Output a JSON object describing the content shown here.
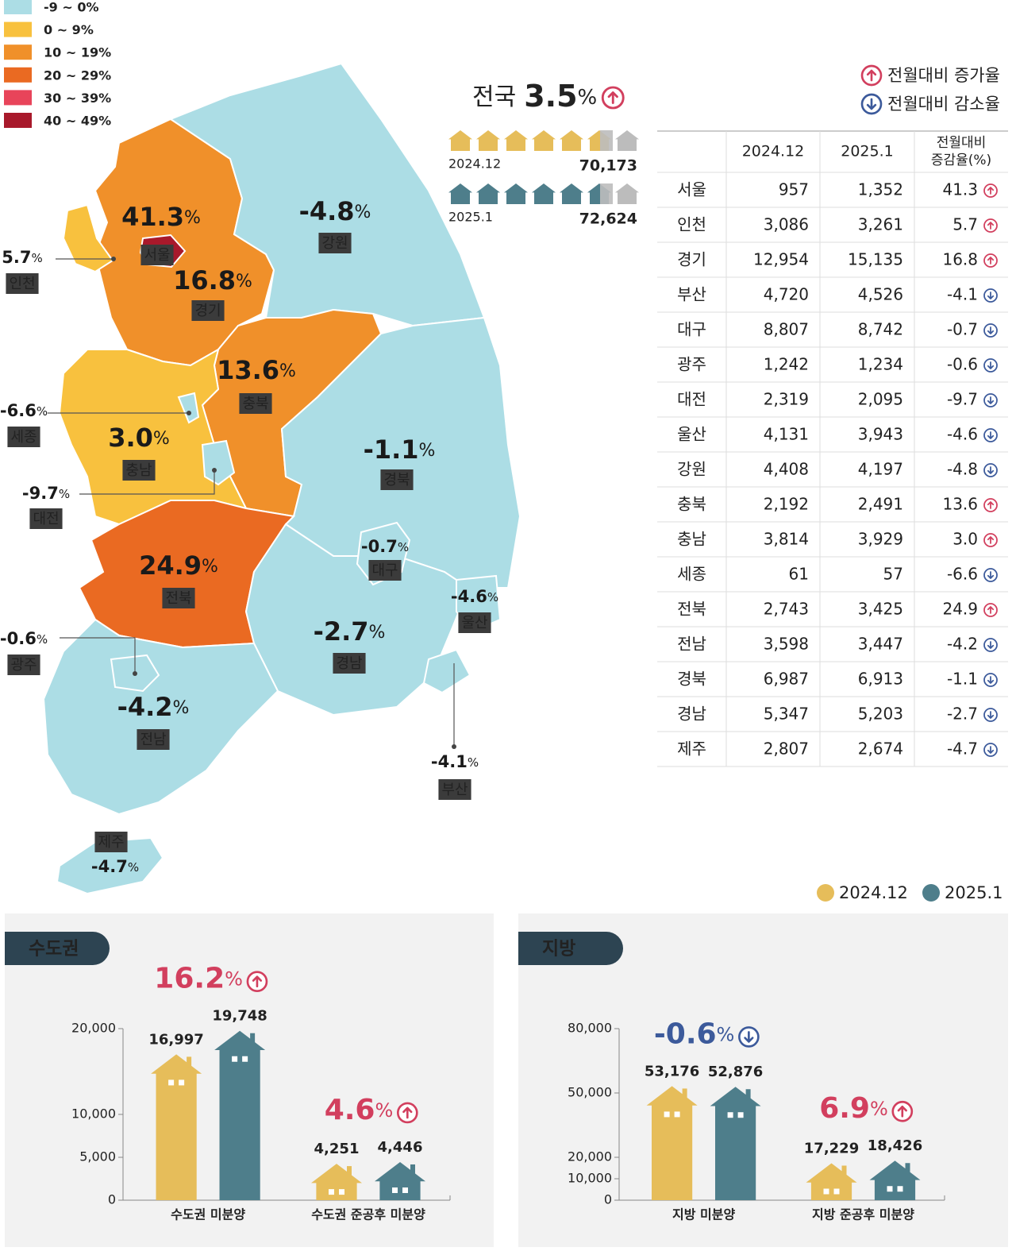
{
  "legend": {
    "bins": [
      {
        "label": "-9 ~ 0%",
        "range": [
          -9,
          0
        ],
        "color": "#acdde5"
      },
      {
        "label": "0 ~ 9%",
        "range": [
          0,
          9
        ],
        "color": "#f8c13e"
      },
      {
        "label": "10 ~ 19%",
        "range": [
          10,
          19
        ],
        "color": "#f0902a"
      },
      {
        "label": "20 ~ 29%",
        "range": [
          20,
          29
        ],
        "color": "#ea6a22"
      },
      {
        "label": "30 ~ 39%",
        "range": [
          30,
          39
        ],
        "color": "#e8445a"
      },
      {
        "label": "40 ~ 49%",
        "range": [
          40,
          49
        ],
        "color": "#a8192b"
      }
    ]
  },
  "unit": "%",
  "change_legend": {
    "up": "전월대비 증가율",
    "down": "전월대비 감소율"
  },
  "national": {
    "label": "전국",
    "change": "3.5",
    "rows": [
      {
        "period": "2024.12",
        "total": "70,173"
      },
      {
        "period": "2025.1",
        "total": "72,624"
      }
    ]
  },
  "table": {
    "columns": [
      "2024.12",
      "2025.1"
    ],
    "change_header": [
      "전월대비",
      "증감율(%)"
    ],
    "rows": [
      {
        "region": "서울",
        "prev": "957",
        "curr": "1,352",
        "change": "41.3"
      },
      {
        "region": "인천",
        "prev": "3,086",
        "curr": "3,261",
        "change": "5.7"
      },
      {
        "region": "경기",
        "prev": "12,954",
        "curr": "15,135",
        "change": "16.8"
      },
      {
        "region": "부산",
        "prev": "4,720",
        "curr": "4,526",
        "change": "-4.1"
      },
      {
        "region": "대구",
        "prev": "8,807",
        "curr": "8,742",
        "change": "-0.7"
      },
      {
        "region": "광주",
        "prev": "1,242",
        "curr": "1,234",
        "change": "-0.6"
      },
      {
        "region": "대전",
        "prev": "2,319",
        "curr": "2,095",
        "change": "-9.7"
      },
      {
        "region": "울산",
        "prev": "4,131",
        "curr": "3,943",
        "change": "-4.6"
      },
      {
        "region": "강원",
        "prev": "4,408",
        "curr": "4,197",
        "change": "-4.8"
      },
      {
        "region": "충북",
        "prev": "2,192",
        "curr": "2,491",
        "change": "13.6"
      },
      {
        "region": "충남",
        "prev": "3,814",
        "curr": "3,929",
        "change": "3.0"
      },
      {
        "region": "세종",
        "prev": "61",
        "curr": "57",
        "change": "-6.6"
      },
      {
        "region": "전북",
        "prev": "2,743",
        "curr": "3,425",
        "change": "24.9"
      },
      {
        "region": "전남",
        "prev": "3,598",
        "curr": "3,447",
        "change": "-4.2"
      },
      {
        "region": "경북",
        "prev": "6,987",
        "curr": "6,913",
        "change": "-1.1"
      },
      {
        "region": "경남",
        "prev": "5,347",
        "curr": "5,203",
        "change": "-2.7"
      },
      {
        "region": "제주",
        "prev": "2,807",
        "curr": "2,674",
        "change": "-4.7"
      }
    ]
  },
  "chart_data": [
    {
      "type": "bar",
      "title": "수도권",
      "categories": [
        "수도권 미분양",
        "수도권 준공후 미분양"
      ],
      "series": [
        {
          "name": "2024.12",
          "color": "#e6bd5a",
          "values": [
            16997,
            4251
          ],
          "value_labels": [
            "16,997",
            "4,251"
          ]
        },
        {
          "name": "2025.1",
          "color": "#4e7e8b",
          "values": [
            19748,
            4446
          ],
          "value_labels": [
            "19,748",
            "4,446"
          ]
        }
      ],
      "changes": [
        "16.2",
        "4.6"
      ],
      "ylim": [
        0,
        20000
      ],
      "yticks": [
        0,
        {
          "value": 5000,
          "label": "5,000"
        },
        {
          "value": 10000,
          "label": "10,000"
        },
        {
          "value": 20000,
          "label": "20,000"
        }
      ]
    },
    {
      "type": "bar",
      "title": "지방",
      "categories": [
        "지방 미분양",
        "지방 준공후 미분양"
      ],
      "series": [
        {
          "color": "#e6bd5a",
          "values": [
            53176,
            17229
          ],
          "value_labels": [
            "53,176",
            "17,229"
          ]
        },
        {
          "color": "#4e7e8b",
          "values": [
            52876,
            18426
          ],
          "value_labels": [
            "52,876",
            "18,426"
          ]
        }
      ],
      "changes": [
        "-0.6",
        "6.9"
      ],
      "ylim": [
        0,
        80000
      ],
      "yticks": [
        0,
        {
          "value": 10000,
          "label": "10,000"
        },
        {
          "value": 20000,
          "label": "20,000"
        },
        {
          "value": 50000,
          "label": "50,000"
        },
        {
          "value": 80000,
          "label": "80,000"
        }
      ]
    }
  ]
}
